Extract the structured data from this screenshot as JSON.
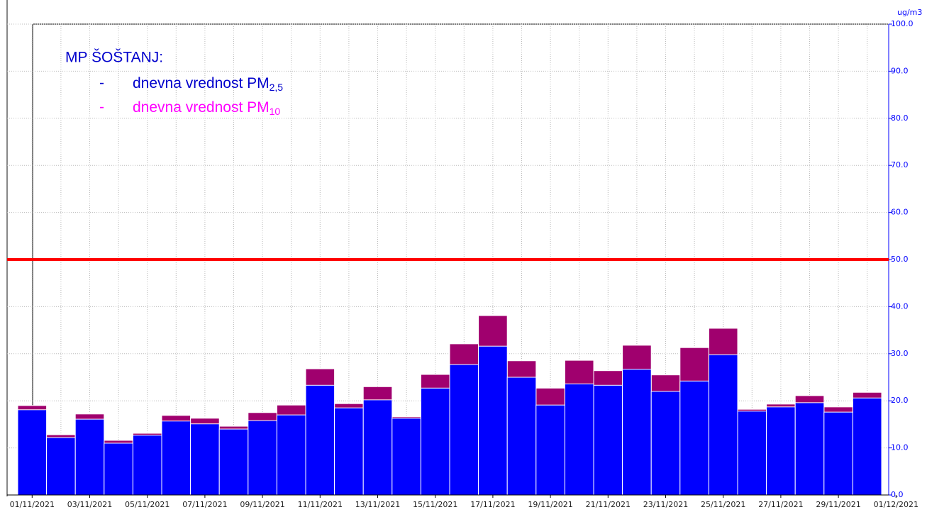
{
  "chart_data": {
    "type": "bar",
    "station": "MP ŠOŠTANJ:",
    "legend_dash": "-",
    "unit": "ug/m3",
    "x_labels": [
      "01/11/2021",
      "03/11/2021",
      "05/11/2021",
      "07/11/2021",
      "09/11/2021",
      "11/11/2021",
      "13/11/2021",
      "15/11/2021",
      "17/11/2021",
      "19/11/2021",
      "21/11/2021",
      "23/11/2021",
      "25/11/2021",
      "27/11/2021",
      "29/11/2021",
      "01/12/2021"
    ],
    "series": [
      {
        "name": "dnevna vrednost PM",
        "name_subscript": "10",
        "color": "#a0006e",
        "legend_color": "#ff00ff",
        "values": [
          19.0,
          12.8,
          17.2,
          11.6,
          13.1,
          16.9,
          16.3,
          14.6,
          17.5,
          19.1,
          26.8,
          19.4,
          23.0,
          16.6,
          25.6,
          32.1,
          38.1,
          28.5,
          22.7,
          28.6,
          26.4,
          31.8,
          25.5,
          31.3,
          35.4,
          18.2,
          19.3,
          21.1,
          18.7,
          21.8
        ]
      },
      {
        "name": "dnevna vrednost PM",
        "name_subscript": "2,5",
        "color": "#0000ff",
        "legend_color": "#0000cc",
        "values": [
          18.1,
          12.2,
          16.1,
          11.0,
          12.7,
          15.7,
          15.1,
          14.0,
          15.8,
          17.0,
          23.3,
          18.5,
          20.2,
          16.3,
          22.7,
          27.7,
          31.6,
          25.0,
          19.1,
          23.6,
          23.3,
          26.7,
          22.0,
          24.2,
          29.8,
          17.8,
          18.7,
          19.6,
          17.6,
          20.6
        ]
      }
    ],
    "threshold": 50,
    "threshold_color": "#ff0000",
    "ylim": [
      0,
      100
    ],
    "yticks": [
      {
        "value": 0,
        "label": "0.0"
      },
      {
        "value": 10,
        "label": "10.0"
      },
      {
        "value": 20,
        "label": "20.0"
      },
      {
        "value": 30,
        "label": "30.0"
      },
      {
        "value": 40,
        "label": "40.0"
      },
      {
        "value": 50,
        "label": "50.0"
      },
      {
        "value": 60,
        "label": "60.0"
      },
      {
        "value": 70,
        "label": "70.0"
      },
      {
        "value": 80,
        "label": "80.0"
      },
      {
        "value": 90,
        "label": "90.0"
      },
      {
        "value": 100,
        "label": "100.0"
      }
    ],
    "grid": true
  }
}
